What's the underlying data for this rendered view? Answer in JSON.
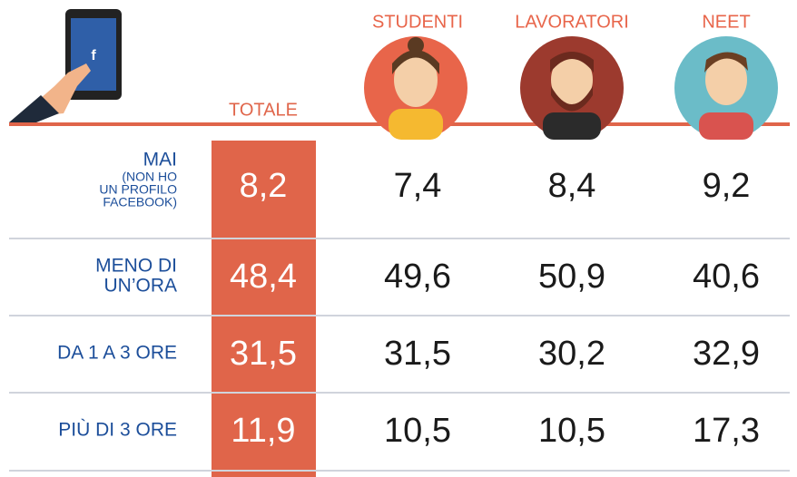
{
  "header": {
    "columns": [
      "TOTALE",
      "STUDENTI",
      "LAVORATORI",
      "NEET"
    ]
  },
  "table": {
    "rows": [
      {
        "label": [
          "MAI"
        ],
        "note": [
          "(NON HO",
          "UN PROFILO",
          "FACEBOOK)"
        ],
        "values": [
          "8,2",
          "7,4",
          "8,4",
          "9,2"
        ]
      },
      {
        "label": [
          "MENO DI",
          "UN’ORA"
        ],
        "values": [
          "48,4",
          "49,6",
          "50,9",
          "40,6"
        ]
      },
      {
        "label": [
          "DA 1 A 3 ORE"
        ],
        "values": [
          "31,5",
          "31,5",
          "30,2",
          "32,9"
        ]
      },
      {
        "label": [
          "PIÙ DI 3 ORE"
        ],
        "values": [
          "11,9",
          "10,5",
          "10,5",
          "17,3"
        ]
      }
    ]
  }
}
